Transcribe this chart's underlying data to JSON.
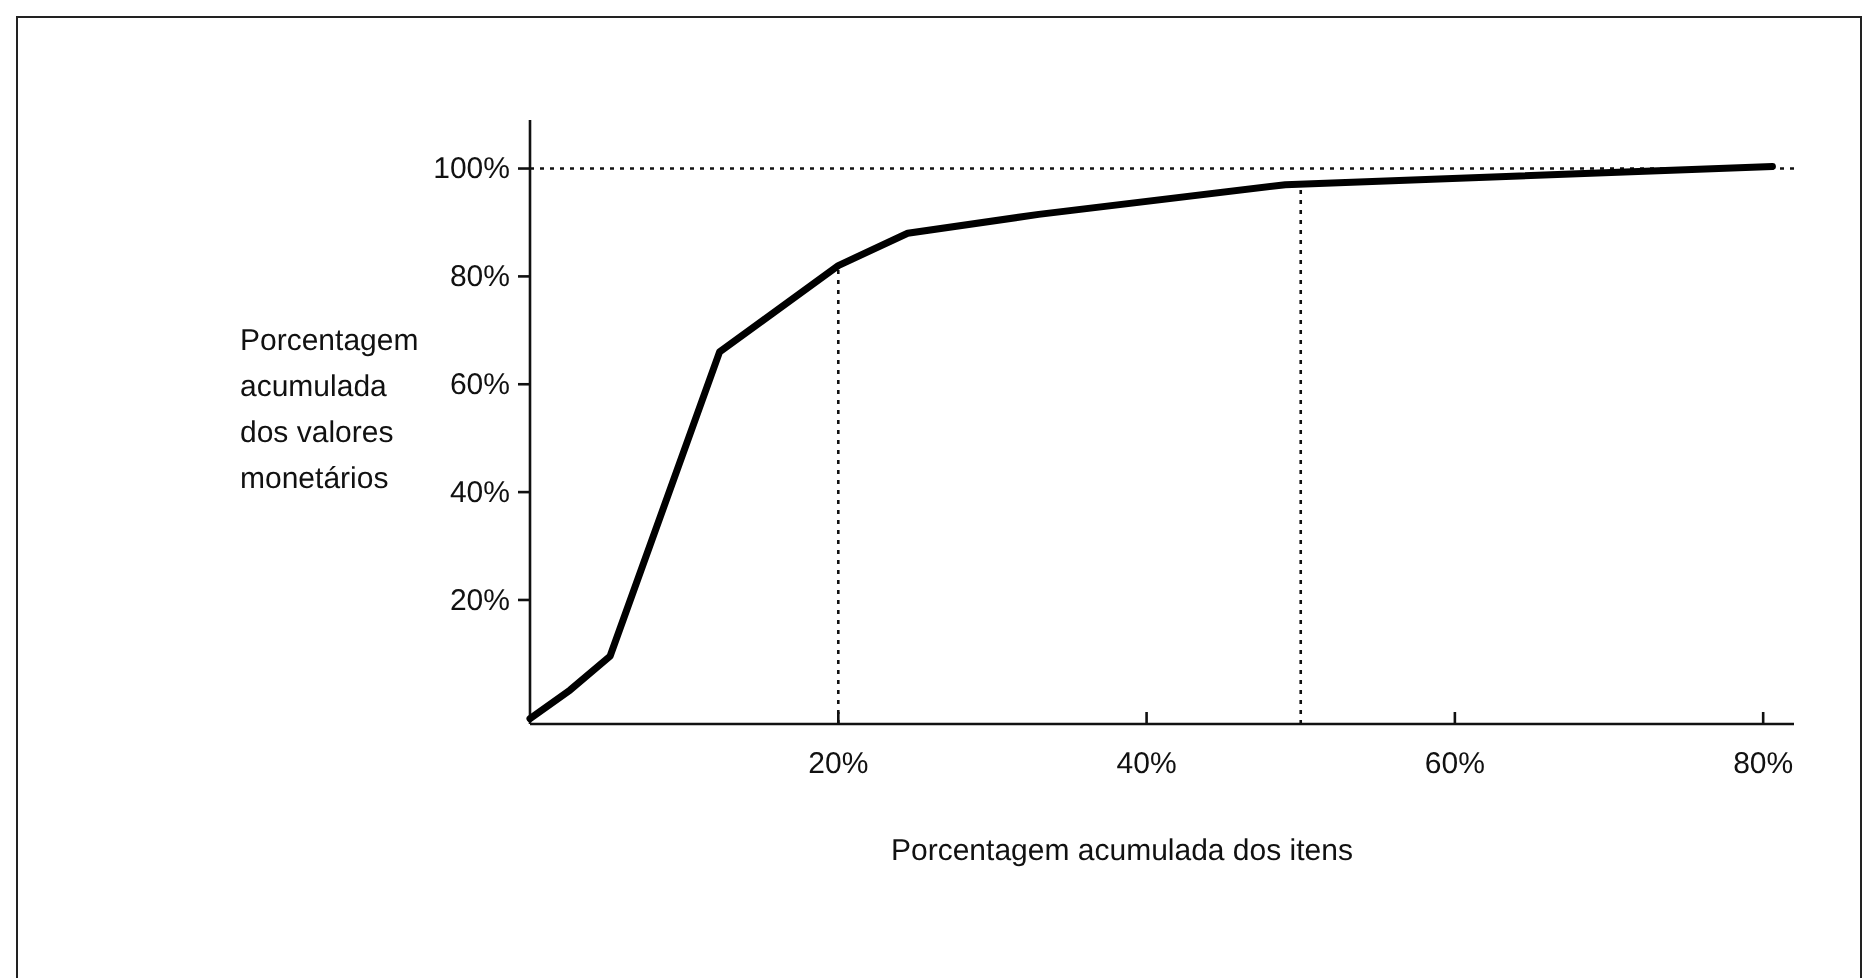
{
  "chart_data": {
    "type": "line",
    "xlabel": "Porcentagem acumulada dos itens",
    "ylabel": "Porcentagem acumulada dos valores monetários",
    "x": [
      0,
      2.6,
      5.2,
      12.3,
      20,
      24.5,
      33,
      49,
      80.6
    ],
    "series": [
      {
        "color": "#000000",
        "values": [
          -2,
          3.3,
          9.6,
          66,
          82,
          88,
          91.5,
          97,
          100.4
        ]
      }
    ],
    "xlim": [
      0,
      82
    ],
    "ylim": [
      -3,
      109
    ],
    "xticks": [
      {
        "value": 20,
        "label": "20%"
      },
      {
        "value": 40,
        "label": "40%"
      },
      {
        "value": 60,
        "label": "60%"
      },
      {
        "value": 80,
        "label": "80%"
      }
    ],
    "yticks": [
      {
        "value": 20,
        "label": "20%"
      },
      {
        "value": 40,
        "label": "40%"
      },
      {
        "value": 60,
        "label": "60%"
      },
      {
        "value": 80,
        "label": "80%"
      },
      {
        "value": 100,
        "label": "100%"
      }
    ],
    "ref_lines": [
      {
        "axis": "y",
        "value": 100,
        "line_style": "dotted"
      },
      {
        "axis": "x",
        "value": 20,
        "line_style": "dotted"
      },
      {
        "axis": "x",
        "value": 50,
        "line_style": "dotted"
      }
    ],
    "grid": false,
    "marker": "none",
    "line_style": "solid"
  }
}
